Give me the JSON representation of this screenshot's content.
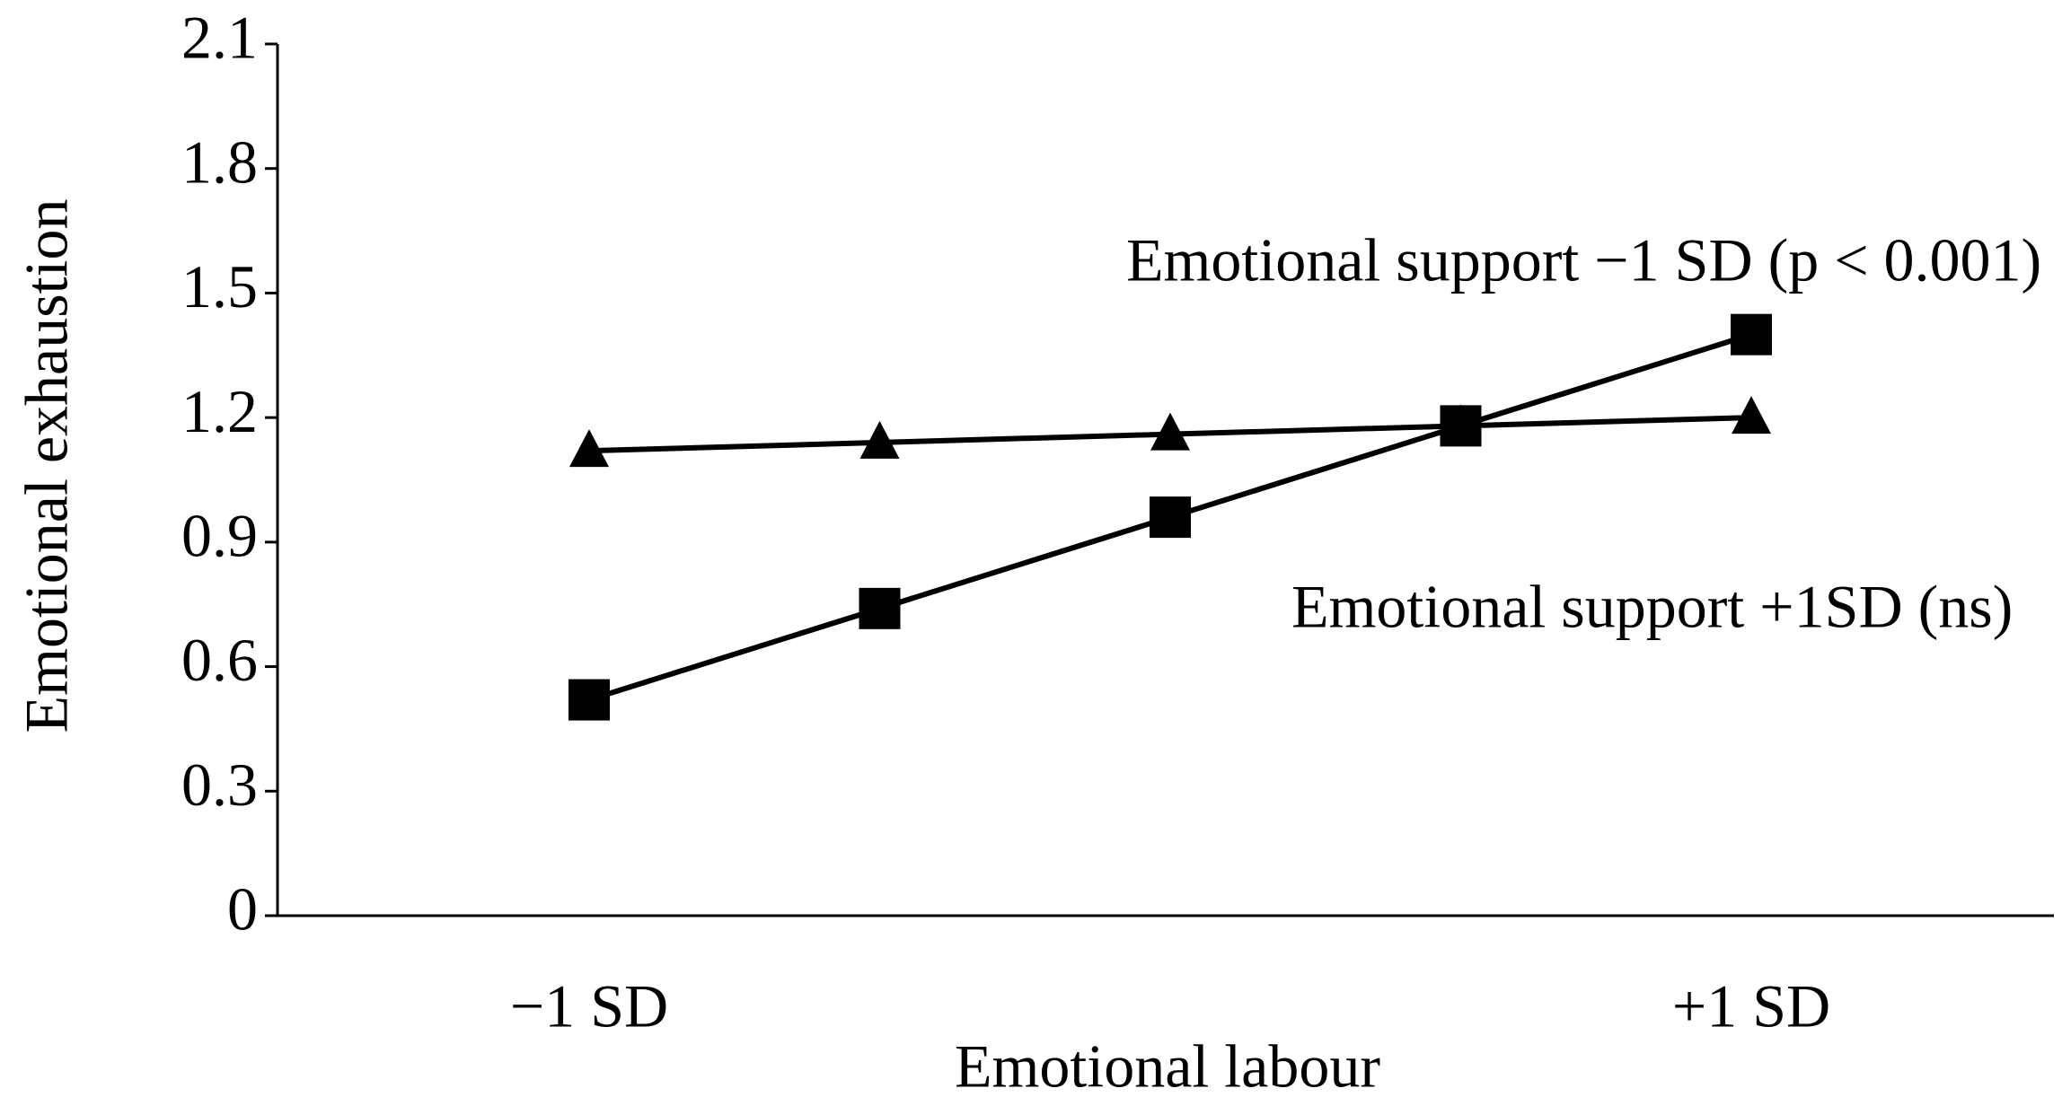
{
  "chart_data": {
    "type": "line",
    "xlabel": "Emotional labour",
    "ylabel": "Emotional exhaustion",
    "categories": [
      "−1 SD",
      null,
      null,
      null,
      "+1 SD"
    ],
    "series": [
      {
        "name": "Emotional support −1 SD (p < 0.001)",
        "marker": "square",
        "color": "#000000",
        "values": [
          0.52,
          0.74,
          0.96,
          1.18,
          1.4
        ]
      },
      {
        "name": "Emotional support +1SD (ns)",
        "marker": "triangle",
        "color": "#000000",
        "values": [
          1.12,
          1.14,
          1.16,
          1.18,
          1.2
        ]
      }
    ],
    "ylim": [
      0,
      2.1
    ],
    "yticks": [
      0,
      0.3,
      0.6,
      0.9,
      1.2,
      1.5,
      1.8,
      2.1
    ],
    "grid": false
  }
}
